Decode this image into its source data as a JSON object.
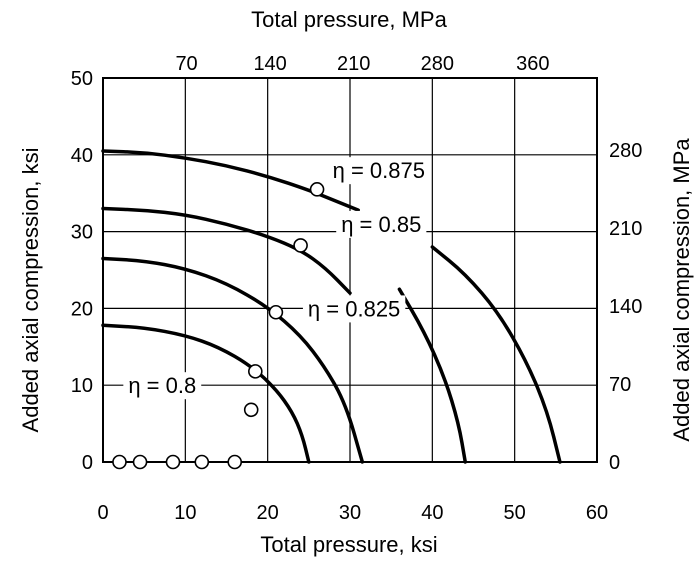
{
  "chart_data": {
    "type": "line",
    "xlabel": "Total pressure, ksi",
    "ylabel": "Added axial compression, ksi",
    "x2label": "Total pressure, MPa",
    "y2label": "Added axial compression, MPa",
    "xlim": [
      0,
      60
    ],
    "ylim": [
      0,
      50
    ],
    "grid": true,
    "x_ticks": [
      0,
      10,
      20,
      30,
      40,
      50,
      60
    ],
    "y_ticks": [
      0,
      10,
      20,
      30,
      40,
      50
    ],
    "x2_ticks": [
      {
        "label": "70",
        "ksi": 10.15
      },
      {
        "label": "140",
        "ksi": 20.3
      },
      {
        "label": "210",
        "ksi": 30.45
      },
      {
        "label": "280",
        "ksi": 40.6
      },
      {
        "label": "360",
        "ksi": 52.2
      }
    ],
    "y2_ticks": [
      {
        "label": "0",
        "ksi": 0
      },
      {
        "label": "70",
        "ksi": 10.15
      },
      {
        "label": "140",
        "ksi": 20.3
      },
      {
        "label": "210",
        "ksi": 30.45
      },
      {
        "label": "280",
        "ksi": 40.6
      }
    ],
    "series": [
      {
        "name": "η = 0.8",
        "x": [
          0,
          5,
          10,
          14,
          18,
          21,
          23,
          24.2,
          25
        ],
        "y": [
          17.8,
          17.5,
          16.5,
          15,
          12.5,
          9.5,
          6.5,
          3.5,
          0
        ]
      },
      {
        "name": "η = 0.825",
        "x": [
          0,
          5,
          10,
          15,
          20,
          24,
          27,
          29.5,
          31.5
        ],
        "y": [
          26.5,
          26.2,
          25.2,
          23.3,
          20.2,
          16.5,
          12.3,
          7.5,
          0
        ]
      },
      {
        "name": "η = 0.85",
        "x": [
          0,
          5,
          10,
          15,
          20,
          24,
          27,
          30
        ],
        "y": [
          33,
          32.8,
          32.2,
          31,
          29.4,
          27.6,
          25.3,
          22
        ],
        "x_b": [
          36,
          39,
          41.5,
          43.2,
          44
        ],
        "y_b": [
          22.5,
          17,
          11,
          5,
          0
        ]
      },
      {
        "name": "η = 0.875",
        "x": [
          0,
          5,
          10,
          15,
          20,
          25,
          28,
          31
        ],
        "y": [
          40.5,
          40.3,
          39.6,
          38.6,
          37.2,
          35.4,
          34.1,
          32.8
        ],
        "x_b": [
          40,
          44,
          48,
          51.5,
          54,
          55.5
        ],
        "y_b": [
          28,
          24.5,
          19.5,
          13,
          6.5,
          0
        ]
      }
    ],
    "curve_labels": [
      {
        "text": "η = 0.8",
        "x": 7.2,
        "y": 10
      },
      {
        "text": "η = 0.825",
        "x": 30.5,
        "y": 20
      },
      {
        "text": "η = 0.85",
        "x": 33.8,
        "y": 31
      },
      {
        "text": "η = 0.875",
        "x": 33.5,
        "y": 38
      }
    ],
    "points": {
      "x": [
        2,
        4.5,
        8.5,
        12,
        16,
        18,
        18.5,
        21,
        24,
        26
      ],
      "y": [
        0,
        0,
        0,
        0,
        0,
        6.8,
        11.8,
        19.5,
        28.2,
        35.5
      ]
    }
  }
}
